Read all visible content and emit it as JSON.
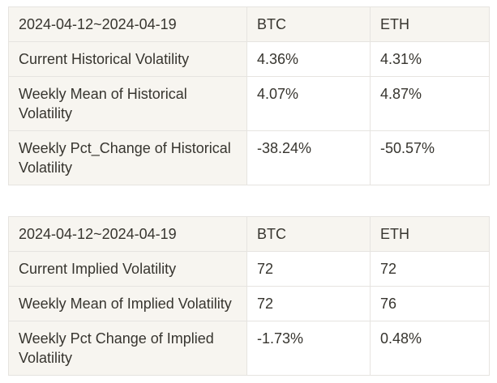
{
  "colors": {
    "page_background": "#ffffff",
    "header_cell_background": "#f7f5f0",
    "value_cell_background": "#ffffff",
    "border": "#e6e4e0",
    "text": "#37352f"
  },
  "tables": [
    {
      "name": "historical-volatility",
      "columns": [
        "2024-04-12~2024-04-19",
        "BTC",
        "ETH"
      ],
      "rows": [
        {
          "label": "Current Historical Volatility",
          "btc": "4.36%",
          "eth": "4.31%"
        },
        {
          "label": "Weekly Mean of Historical Volatility",
          "btc": "4.07%",
          "eth": "4.87%"
        },
        {
          "label": "Weekly Pct_Change of Historical Volatility",
          "btc": "-38.24%",
          "eth": "-50.57%"
        }
      ]
    },
    {
      "name": "implied-volatility",
      "columns": [
        "2024-04-12~2024-04-19",
        "BTC",
        "ETH"
      ],
      "rows": [
        {
          "label": "Current Implied Volatility",
          "btc": "72",
          "eth": "72"
        },
        {
          "label": "Weekly Mean of Implied Volatility",
          "btc": "72",
          "eth": "76"
        },
        {
          "label": "Weekly Pct Change of Implied Volatility",
          "btc": "-1.73%",
          "eth": "0.48%"
        }
      ]
    }
  ]
}
